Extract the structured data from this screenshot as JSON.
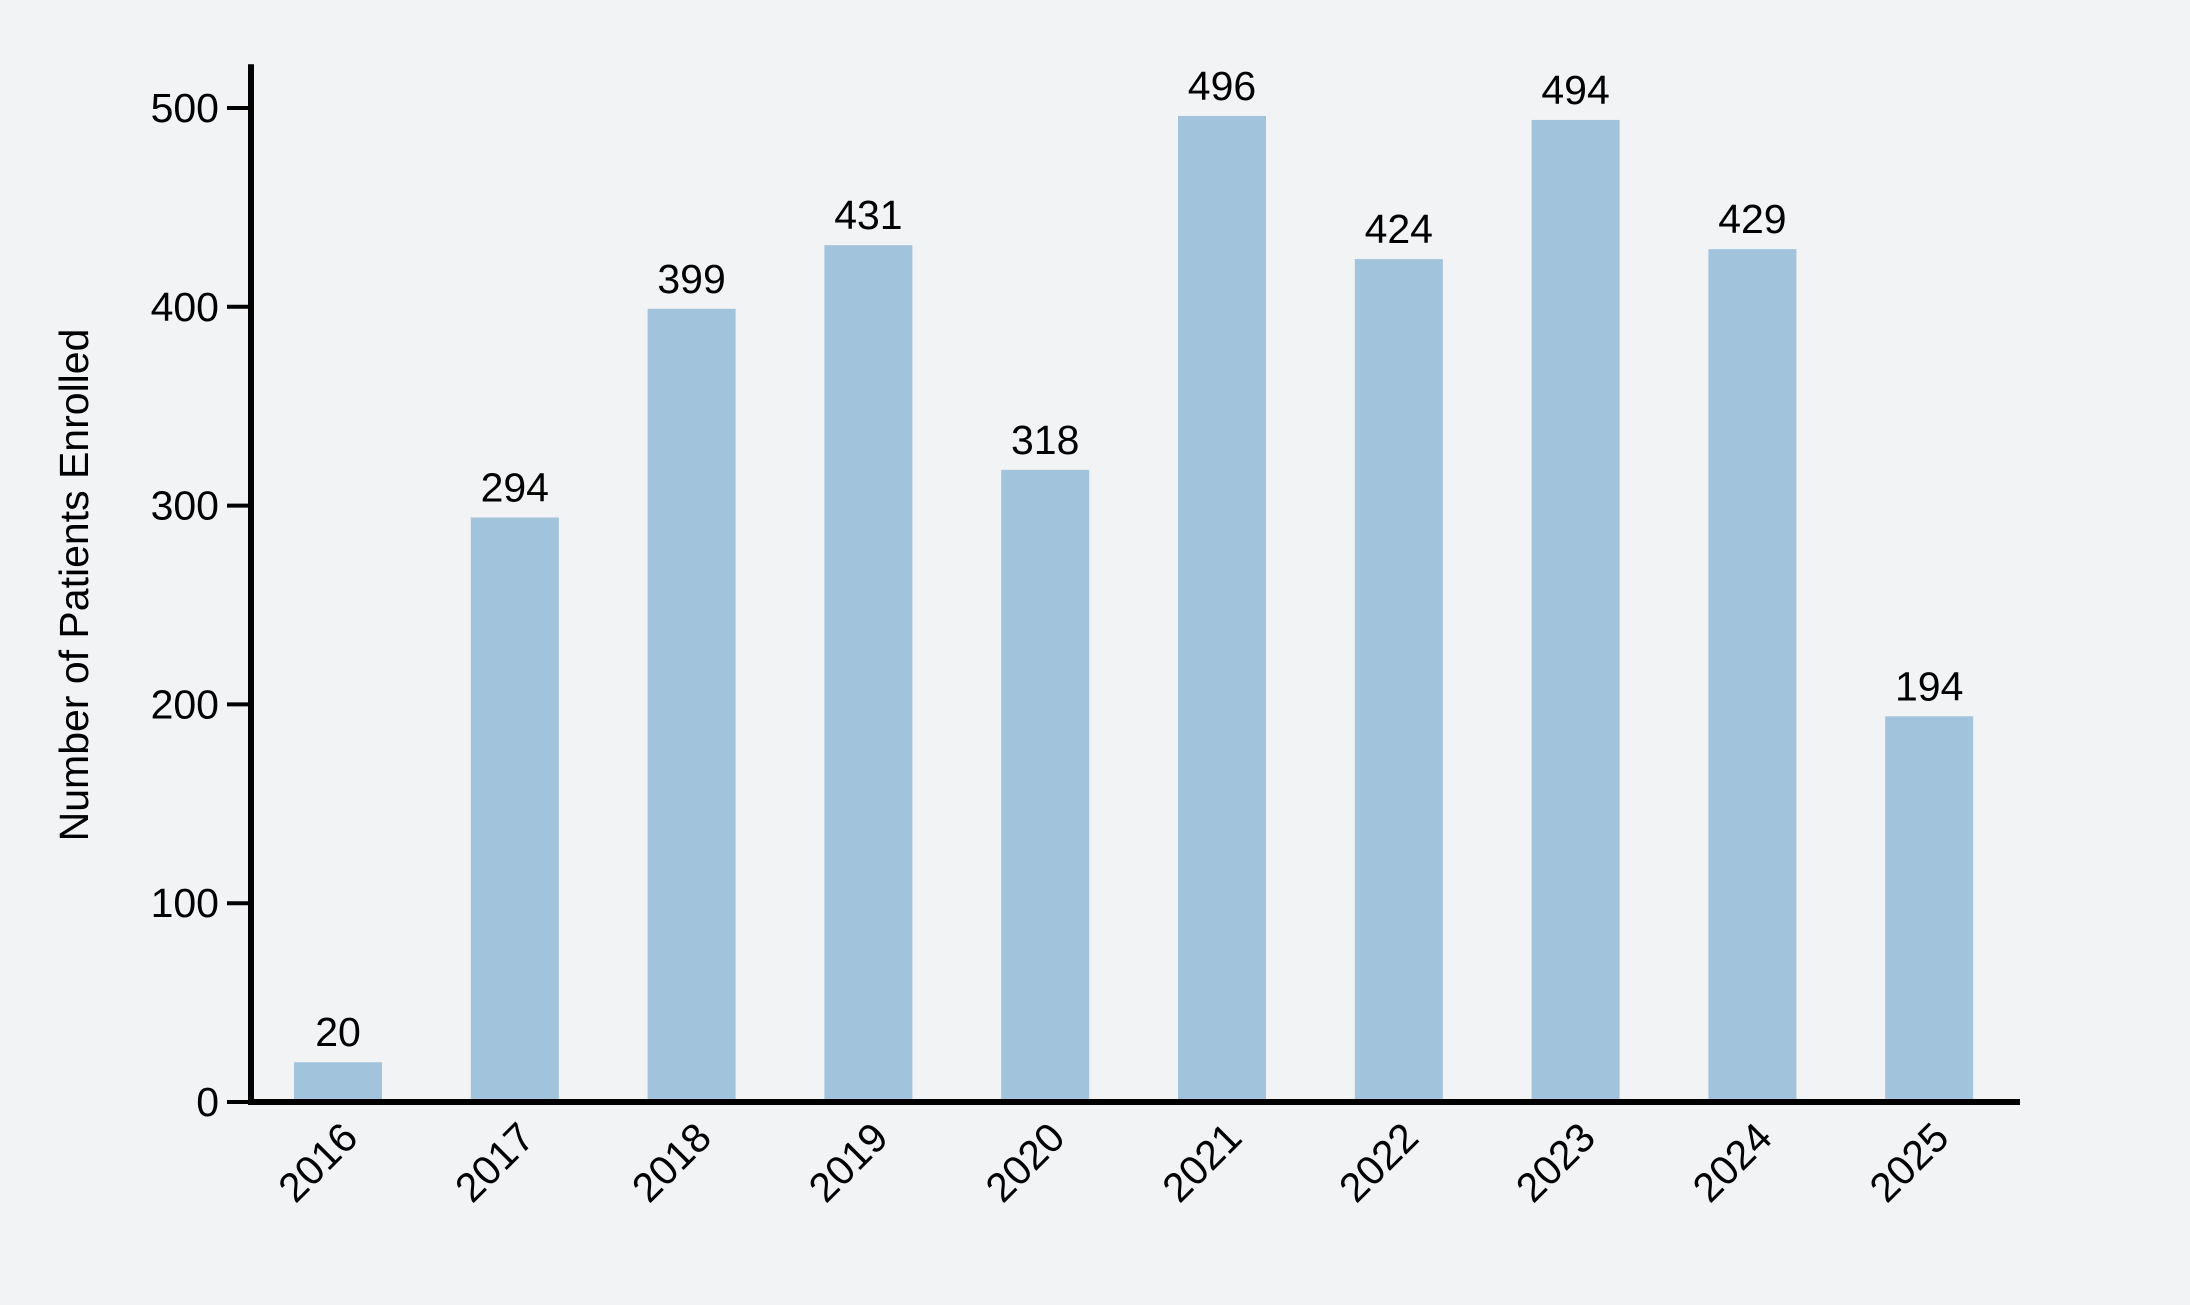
{
  "chart_data": {
    "type": "bar",
    "title": "",
    "xlabel": "",
    "ylabel": "Number of Patients Enrolled",
    "categories": [
      "2016",
      "2017",
      "2018",
      "2019",
      "2020",
      "2021",
      "2022",
      "2023",
      "2024",
      "2025"
    ],
    "values": [
      20,
      294,
      399,
      431,
      318,
      496,
      424,
      494,
      429,
      194
    ],
    "ylim": [
      0,
      522
    ],
    "yticks": [
      0,
      100,
      200,
      300,
      400,
      500
    ],
    "grid": false,
    "legend": "none",
    "bar_color": "#a1c3db",
    "axis_color": "#000000",
    "background": "#f2f3f5"
  }
}
